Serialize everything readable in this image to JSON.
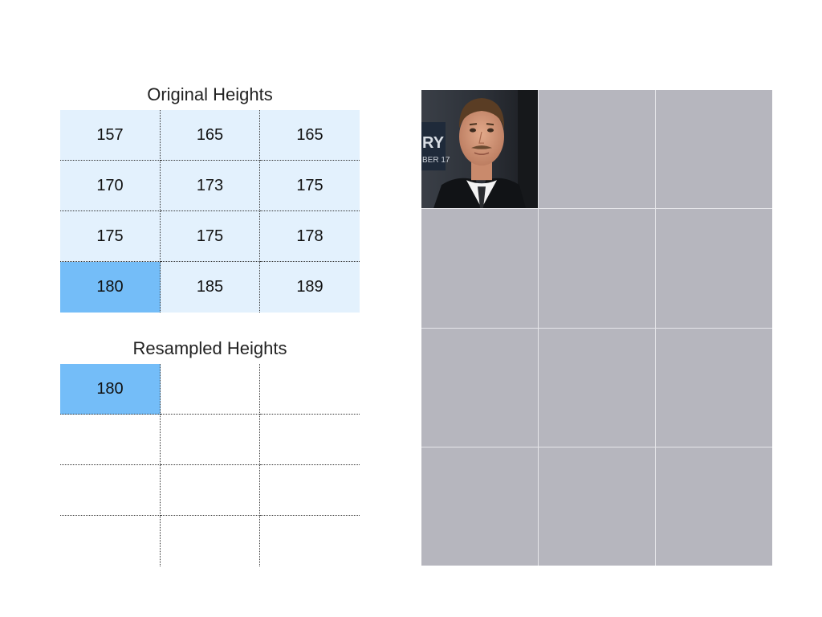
{
  "original": {
    "title": "Original Heights",
    "rows": [
      [
        "157",
        "165",
        "165"
      ],
      [
        "170",
        "173",
        "175"
      ],
      [
        "175",
        "175",
        "178"
      ],
      [
        "180",
        "185",
        "189"
      ]
    ],
    "highlight_color": "#74bdf8",
    "cell_color": "#e3f1fd"
  },
  "resampled": {
    "title": "Resampled Heights",
    "rows": [
      [
        "180",
        "",
        ""
      ],
      [
        "",
        "",
        ""
      ],
      [
        "",
        "",
        ""
      ],
      [
        "",
        "",
        ""
      ]
    ]
  },
  "photo_grid": {
    "tile_color": "#b6b6be",
    "photo_caption_fragments": [
      "RY",
      "BER 17"
    ]
  }
}
